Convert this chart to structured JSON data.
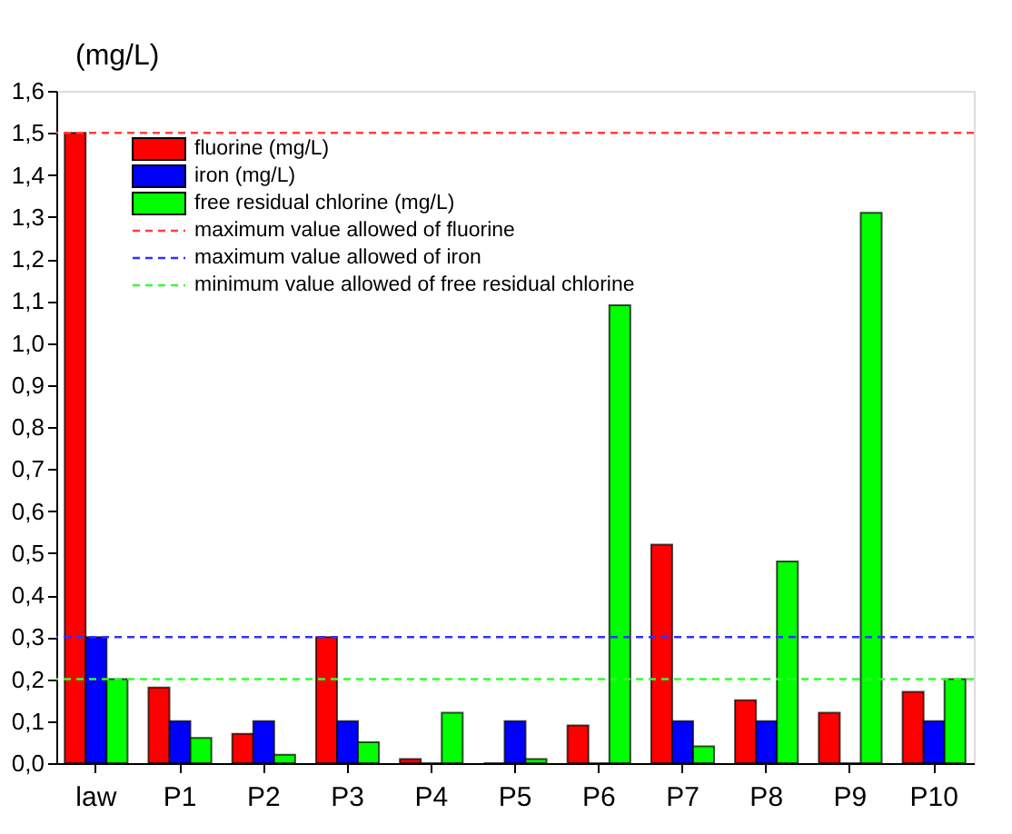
{
  "chart_data": {
    "type": "bar",
    "ylabel": "(mg/L)",
    "categories": [
      "law",
      "P1",
      "P2",
      "P3",
      "P4",
      "P5",
      "P6",
      "P7",
      "P8",
      "P9",
      "P10"
    ],
    "series": [
      {
        "name": "fluorine (mg/L)",
        "color": "#ff0000",
        "values": [
          1.5,
          0.18,
          0.07,
          0.3,
          0.01,
          0,
          0.09,
          0.52,
          0.15,
          0.12,
          0.17
        ]
      },
      {
        "name": "iron (mg/L)",
        "color": "#0000ff",
        "values": [
          0.3,
          0.1,
          0.1,
          0.1,
          0,
          0.1,
          0,
          0.1,
          0.1,
          0,
          0.1
        ]
      },
      {
        "name": "free residual chlorine (mg/L)",
        "color": "#00ff00",
        "values": [
          0.2,
          0.06,
          0.02,
          0.05,
          0.12,
          0.01,
          1.09,
          0.04,
          0.48,
          1.31,
          0.2
        ]
      }
    ],
    "ref_lines": [
      {
        "axis": "y",
        "value": 1.5,
        "label": "maximum value allowed of fluorine",
        "color": "#ff4040",
        "line_style": "dashed"
      },
      {
        "axis": "y",
        "value": 0.3,
        "label": "maximum value allowed of iron",
        "color": "#3030ff",
        "line_style": "dashed"
      },
      {
        "axis": "y",
        "value": 0.2,
        "label": "minimum value allowed of free residual chlorine",
        "color": "#30ff30",
        "line_style": "dashed"
      }
    ],
    "ylim": [
      0,
      1.6
    ],
    "yticks": [
      {
        "value": 0,
        "label": "0,0"
      },
      {
        "value": 0.1,
        "label": "0,1"
      },
      {
        "value": 0.2,
        "label": "0,2"
      },
      {
        "value": 0.3,
        "label": "0,3"
      },
      {
        "value": 0.4,
        "label": "0,4"
      },
      {
        "value": 0.5,
        "label": "0,5"
      },
      {
        "value": 0.6,
        "label": "0,6"
      },
      {
        "value": 0.7,
        "label": "0,7"
      },
      {
        "value": 0.8,
        "label": "0,8"
      },
      {
        "value": 0.9,
        "label": "0,9"
      },
      {
        "value": 1.0,
        "label": "1,0"
      },
      {
        "value": 1.1,
        "label": "1,1"
      },
      {
        "value": 1.2,
        "label": "1,2"
      },
      {
        "value": 1.3,
        "label": "1,3"
      },
      {
        "value": 1.4,
        "label": "1,4"
      },
      {
        "value": 1.5,
        "label": "1,5"
      },
      {
        "value": 1.6,
        "label": "1,6"
      }
    ],
    "grid": false,
    "legend": "top left"
  }
}
